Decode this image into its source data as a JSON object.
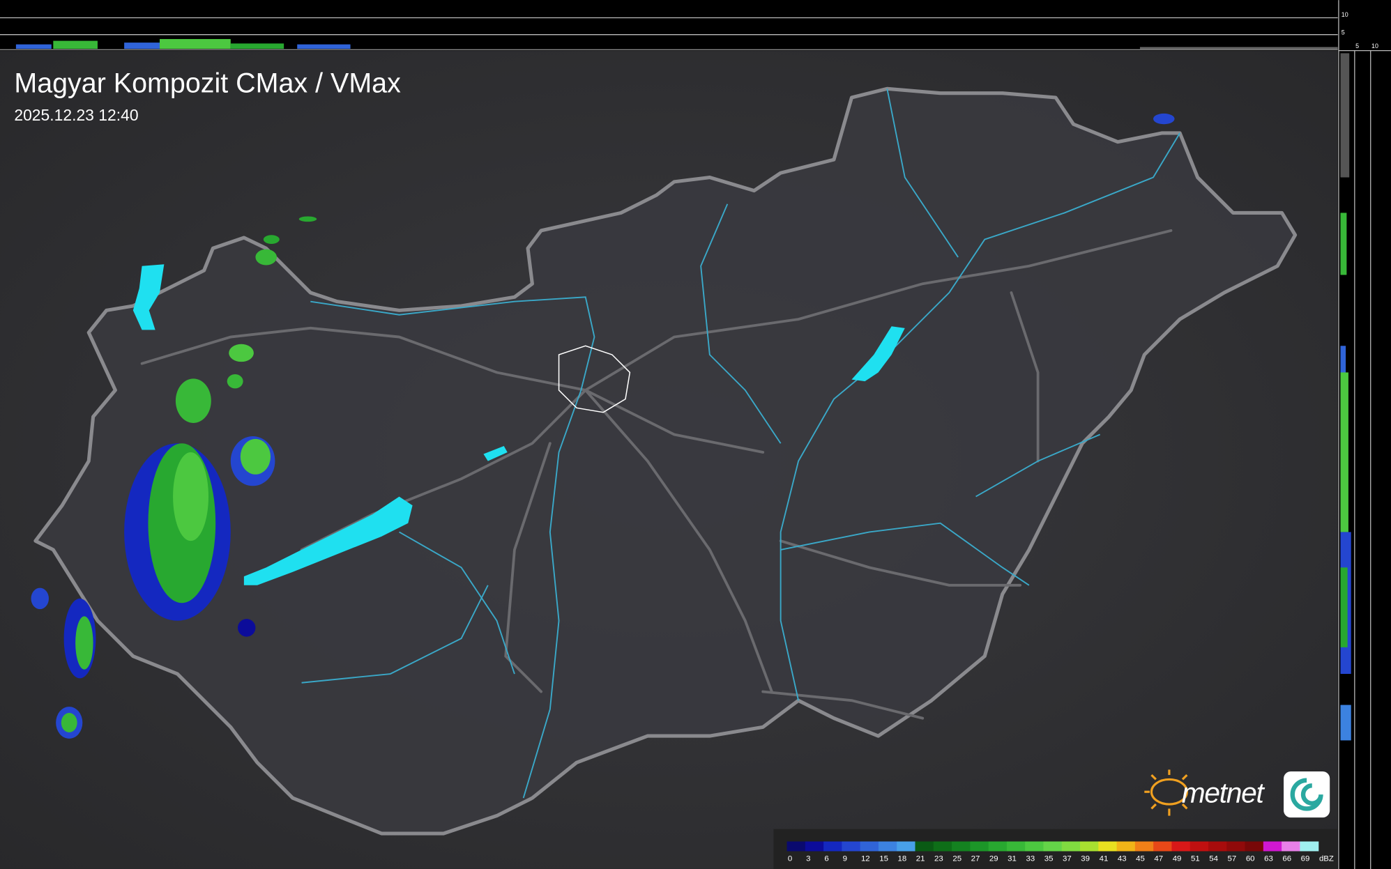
{
  "header": {
    "title": "Magyar Kompozit CMax / VMax",
    "timestamp": "2025.12.23 12:40"
  },
  "profile_axis": {
    "top_labels": [
      "10",
      "5"
    ],
    "right_labels": [
      "5",
      "10"
    ]
  },
  "legend": {
    "labels": [
      0,
      3,
      6,
      9,
      12,
      15,
      18,
      21,
      23,
      25,
      27,
      29,
      31,
      33,
      35,
      37,
      39,
      41,
      43,
      45,
      47,
      49,
      51,
      54,
      57,
      60,
      63,
      66,
      69
    ],
    "colors": [
      "#0a0a6e",
      "#0c0c9a",
      "#1428c0",
      "#2446d0",
      "#3064d8",
      "#3c82e0",
      "#48a0e8",
      "#0a5a14",
      "#0e6e18",
      "#148220",
      "#1c9628",
      "#28a830",
      "#38b838",
      "#4cc840",
      "#64d448",
      "#80dc40",
      "#a8e030",
      "#e8e020",
      "#f0b418",
      "#f08018",
      "#e84818",
      "#d81818",
      "#c01010",
      "#a80c0c",
      "#900a0a",
      "#780808",
      "#d018d0",
      "#e880e8",
      "#a0f0f0"
    ],
    "unit": "dBZ"
  },
  "logo": {
    "text": "metnet"
  }
}
